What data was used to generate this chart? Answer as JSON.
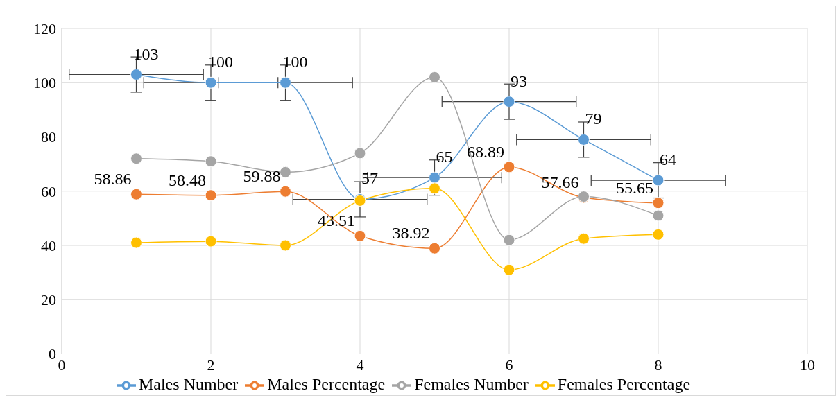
{
  "chart_data": {
    "type": "line",
    "x": [
      1,
      2,
      3,
      4,
      5,
      6,
      7,
      8
    ],
    "xlim": [
      0,
      10
    ],
    "xticks": [
      0,
      2,
      4,
      6,
      8,
      10
    ],
    "ylim": [
      0,
      120
    ],
    "yticks": [
      0,
      20,
      40,
      60,
      80,
      100,
      120
    ],
    "grid": true,
    "legend": "bottom",
    "marker": "circle",
    "line_style": "solid",
    "series": [
      {
        "name": "Males  Number",
        "color": "#5b9bd5",
        "values": [
          103,
          100,
          100,
          57,
          65,
          93,
          79,
          64
        ],
        "errors": [
          6.5,
          6.5,
          6.5,
          6.5,
          6.5,
          6.5,
          6.5,
          6.5
        ],
        "xerrors": [
          0.9,
          0.9,
          0.9,
          0.9,
          0.9,
          0.9,
          0.9,
          0.9
        ],
        "value_labels": [
          "103",
          "100",
          "100",
          "57",
          "65",
          "93",
          "79",
          "64"
        ]
      },
      {
        "name": "Males  Percentage",
        "color": "#ed7d31",
        "values": [
          58.86,
          58.48,
          59.88,
          43.51,
          38.92,
          68.89,
          57.66,
          55.65
        ],
        "value_labels": [
          "58.86",
          "58.48",
          "59.88",
          "43.51",
          "38.92",
          "68.89",
          "57.66",
          "55.65"
        ]
      },
      {
        "name": "Females  Number",
        "color": "#a5a5a5",
        "values": [
          72,
          71,
          67,
          74,
          102,
          42,
          58,
          51
        ]
      },
      {
        "name": "Females  Percentage",
        "color": "#ffc000",
        "values": [
          41,
          41.5,
          40,
          56.5,
          61,
          31,
          42.5,
          44
        ]
      }
    ]
  }
}
